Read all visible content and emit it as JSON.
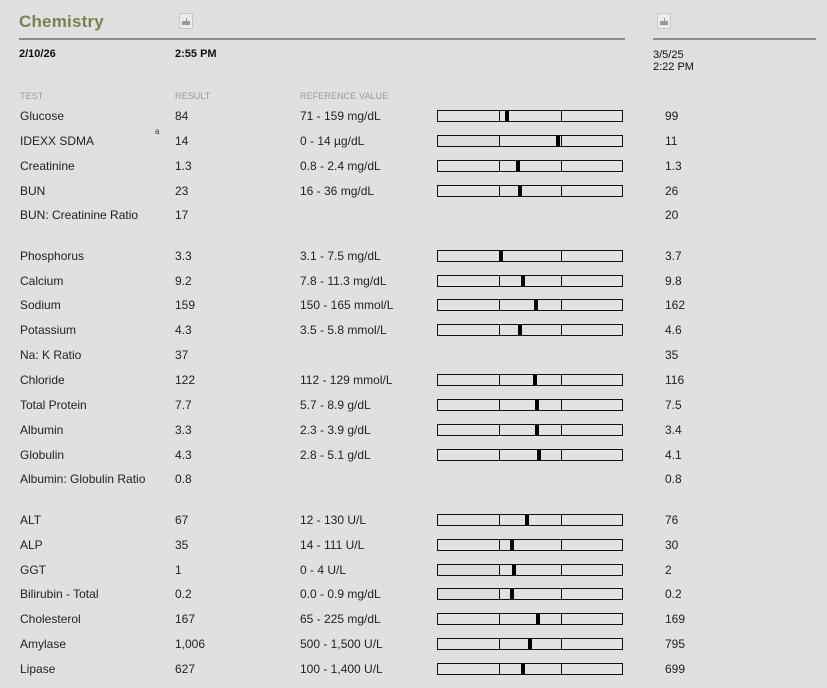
{
  "header": {
    "title": "Chemistry",
    "current_date": "2/10/26",
    "current_time": "2:55 PM",
    "previous_date": "3/5/25",
    "previous_time": "2:22 PM",
    "print_icon": "print-icon"
  },
  "columns": {
    "test": "TEST",
    "result": "RESULT",
    "reference": "REFERENCE VALUE"
  },
  "colors": {
    "title": "#7f8050",
    "background": "#e0e0e0",
    "rule": "#8c8c8c",
    "marker": "#000000"
  },
  "rows": [
    {
      "test": "Glucose",
      "result": "84",
      "reference": "71 - 159 mg/dL",
      "previous": "99",
      "marker_pct": 37.6,
      "zero_low": false
    },
    {
      "test": "IDEXX SDMA",
      "footnote": "a",
      "result": "14",
      "reference": "0 - 14 µg/dL",
      "previous": "11",
      "marker_pct": 65,
      "zero_low": true
    },
    {
      "test": "Creatinine",
      "result": "1.3",
      "reference": "0.8 - 2.4 mg/dL",
      "previous": "1.3",
      "marker_pct": 43.5,
      "zero_low": false
    },
    {
      "test": "BUN",
      "result": "23",
      "reference": "16 - 36 mg/dL",
      "previous": "26",
      "marker_pct": 44.6,
      "zero_low": false
    },
    {
      "test": "BUN: Creatinine Ratio",
      "result": "17",
      "reference": "",
      "previous": "20"
    },
    {
      "test": "Phosphorus",
      "result": "3.3",
      "reference": "3.1 - 7.5 mg/dL",
      "previous": "3.7",
      "marker_pct": 34,
      "zero_low": false
    },
    {
      "test": "Calcium",
      "result": "9.2",
      "reference": "7.8 - 11.3 mg/dL",
      "previous": "9.8",
      "marker_pct": 46,
      "zero_low": false
    },
    {
      "test": "Sodium",
      "result": "159",
      "reference": "150 - 165 mmol/L",
      "previous": "162",
      "marker_pct": 53,
      "zero_low": false
    },
    {
      "test": "Potassium",
      "result": "4.3",
      "reference": "3.5 - 5.8 mmol/L",
      "previous": "4.6",
      "marker_pct": 44.6,
      "zero_low": false
    },
    {
      "test": "Na: K Ratio",
      "result": "37",
      "reference": "",
      "previous": "35"
    },
    {
      "test": "Chloride",
      "result": "122",
      "reference": "112 - 129 mmol/L",
      "previous": "116",
      "marker_pct": 52.7,
      "zero_low": false
    },
    {
      "test": "Total Protein",
      "result": "7.7",
      "reference": "5.7 - 8.9 g/dL",
      "previous": "7.5",
      "marker_pct": 53.8,
      "zero_low": false
    },
    {
      "test": "Albumin",
      "result": "3.3",
      "reference": "2.3 - 3.9 g/dL",
      "previous": "3.4",
      "marker_pct": 53.8,
      "zero_low": false
    },
    {
      "test": "Globulin",
      "result": "4.3",
      "reference": "2.8 - 5.1 g/dL",
      "previous": "4.1",
      "marker_pct": 54.8,
      "zero_low": false
    },
    {
      "test": "Albumin: Globulin Ratio",
      "result": "0.8",
      "reference": "",
      "previous": "0.8"
    },
    {
      "test": "ALT",
      "result": "67",
      "reference": "12 - 130 U/L",
      "previous": "76",
      "marker_pct": 48.4,
      "zero_low": false
    },
    {
      "test": "ALP",
      "result": "35",
      "reference": "14 - 111 U/L",
      "previous": "30",
      "marker_pct": 40.3,
      "zero_low": false
    },
    {
      "test": "GGT",
      "result": "1",
      "reference": "0 - 4 U/L",
      "previous": "2",
      "marker_pct": 41.4,
      "zero_low": true
    },
    {
      "test": "Bilirubin - Total",
      "result": "0.2",
      "reference": "0.0 - 0.9 mg/dL",
      "previous": "0.2",
      "marker_pct": 40.3,
      "zero_low": true
    },
    {
      "test": "Cholesterol",
      "result": "167",
      "reference": "65 - 225 mg/dL",
      "previous": "169",
      "marker_pct": 54.3,
      "zero_low": false
    },
    {
      "test": "Amylase",
      "result": "1,006",
      "reference": "500 - 1,500 U/L",
      "previous": "795",
      "marker_pct": 50,
      "zero_low": false
    },
    {
      "test": "Lipase",
      "result": "627",
      "reference": "100 - 1,400 U/L",
      "previous": "699",
      "marker_pct": 46.2,
      "zero_low": false
    }
  ]
}
